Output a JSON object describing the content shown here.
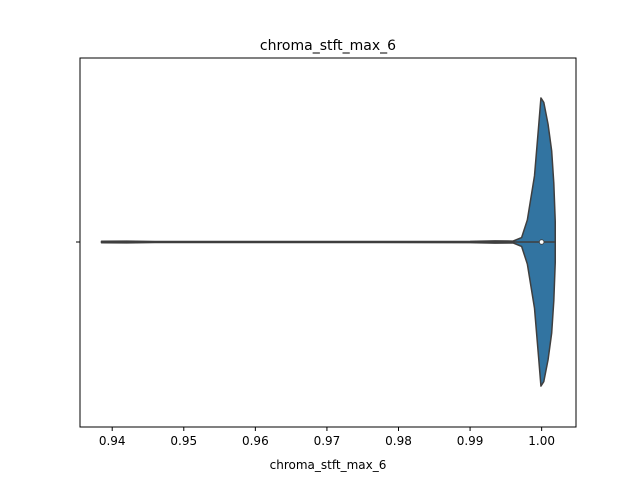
{
  "chart_data": {
    "type": "violin",
    "title": "chroma_stft_max_6",
    "xlabel": "chroma_stft_max_6",
    "ylabel": "",
    "xlim": [
      0.9355,
      1.0048
    ],
    "x_ticks": [
      0.94,
      0.95,
      0.96,
      0.97,
      0.98,
      0.99,
      1.0
    ],
    "x_tick_labels": [
      "0.94",
      "0.95",
      "0.96",
      "0.97",
      "0.98",
      "0.99",
      "1.00"
    ],
    "y_ticks": [
      ""
    ],
    "grid": false,
    "violin": {
      "color": "#3274a1",
      "edge_color": "#3f3f3f",
      "min": 0.9385,
      "max": 1.0019,
      "median": 1.0,
      "q1": 0.9998,
      "q3": 1.0,
      "half_width_profile": [
        [
          0.9385,
          0.005
        ],
        [
          0.942,
          0.006
        ],
        [
          0.946,
          0.003
        ],
        [
          0.97,
          0.003
        ],
        [
          0.99,
          0.004
        ],
        [
          0.9935,
          0.008
        ],
        [
          0.996,
          0.006
        ],
        [
          0.9972,
          0.03
        ],
        [
          0.998,
          0.15
        ],
        [
          0.999,
          0.45
        ],
        [
          0.9996,
          0.8
        ],
        [
          0.9999,
          0.98
        ],
        [
          1.0003,
          0.95
        ],
        [
          1.0009,
          0.8
        ],
        [
          1.0014,
          0.62
        ],
        [
          1.0017,
          0.4
        ],
        [
          1.0019,
          0.14
        ]
      ]
    }
  }
}
